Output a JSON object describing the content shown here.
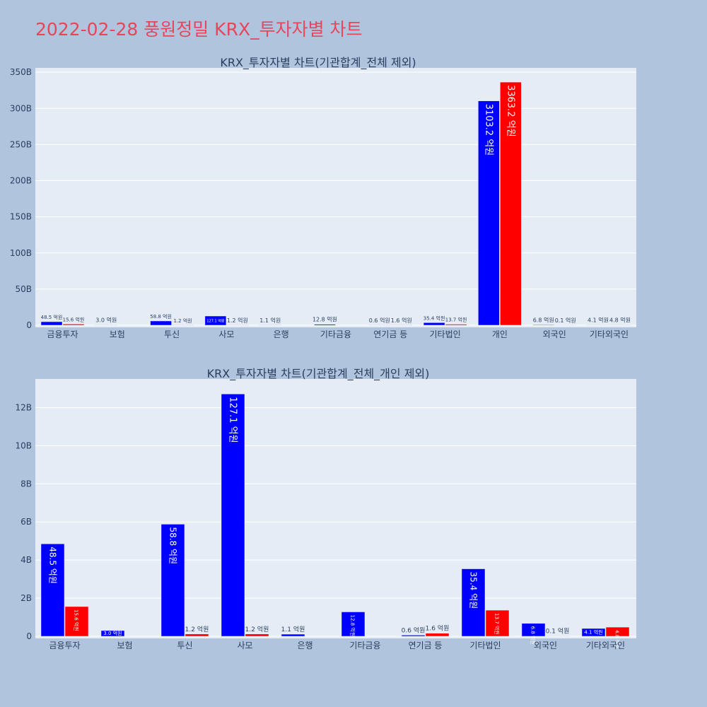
{
  "page_title": "2022-02-28 풍원정밀 KRX_투자자별 차트",
  "colors": {
    "background": "#b0c4de",
    "plot_bg": "#e5ecf6",
    "buy": "#0000ff",
    "sell": "#ff0000",
    "title": "#e8455b",
    "text": "#2a3f5f",
    "grid": "#ffffff"
  },
  "chart_data": [
    {
      "type": "bar",
      "title": "KRX_투자자별 차트(기관합계_전체 제외)",
      "categories": [
        "금융투자",
        "보험",
        "투신",
        "사모",
        "은행",
        "기타금융",
        "연기금 등",
        "기타법인",
        "개인",
        "외국인",
        "기타외국인"
      ],
      "ylim": [
        0,
        356
      ],
      "yticks": [
        0,
        50,
        100,
        150,
        200,
        250,
        300,
        350
      ],
      "ytick_labels": [
        "0",
        "50B",
        "100B",
        "150B",
        "200B",
        "250B",
        "300B",
        "350B"
      ],
      "series": [
        {
          "color": "#0000ff",
          "values": [
            4.85,
            0.3,
            5.88,
            12.71,
            0.11,
            1.28,
            0.06,
            3.54,
            310.32,
            0.68,
            0.41
          ],
          "labels": [
            "48.5 억원",
            "3.0 억원",
            "58.8 억원",
            "127.1 억원",
            "1.1 억원",
            "12.8 억원",
            "0.6 억원",
            "35.4 억원",
            "3103.2 억원",
            "6.8 억원",
            "4.1 억원"
          ]
        },
        {
          "color": "#ff0000",
          "values": [
            1.56,
            0,
            0.12,
            0.12,
            0,
            0,
            0.16,
            1.37,
            336.32,
            0.01,
            0.48
          ],
          "labels": [
            "15.6 억원",
            "",
            "1.2 억원",
            "1.2 억원",
            "",
            "",
            "1.6 억원",
            "13.7 억원",
            "3363.2 억원",
            "0.1 억원",
            "4.8 억원"
          ]
        }
      ],
      "grid": true
    },
    {
      "type": "bar",
      "title": "KRX_투자자별 차트(기관합계_전체_개인 제외)",
      "categories": [
        "금융투자",
        "보험",
        "투신",
        "사모",
        "은행",
        "기타금융",
        "연기금 등",
        "기타법인",
        "외국인",
        "기타외국인"
      ],
      "ylim": [
        0,
        13.5
      ],
      "yticks": [
        0,
        2,
        4,
        6,
        8,
        10,
        12
      ],
      "ytick_labels": [
        "0",
        "2B",
        "4B",
        "6B",
        "8B",
        "10B",
        "12B"
      ],
      "series": [
        {
          "color": "#0000ff",
          "values": [
            4.85,
            0.3,
            5.88,
            12.71,
            0.11,
            1.28,
            0.06,
            3.54,
            0.68,
            0.41
          ],
          "labels": [
            "48.5 억원",
            "3.0 억원",
            "58.8 억원",
            "127.1 억원",
            "1.1 억원",
            "12.8 억원",
            "0.6 억원",
            "35.4 억원",
            "6.8 억원",
            "4.1 억원"
          ]
        },
        {
          "color": "#ff0000",
          "values": [
            1.56,
            0,
            0.12,
            0.12,
            0,
            0,
            0.16,
            1.37,
            0.01,
            0.48
          ],
          "labels": [
            "15.6 억원",
            "",
            "1.2 억원",
            "1.2 억원",
            "",
            "",
            "1.6 억원",
            "13.7 억원",
            "0.1 억원",
            "4.8 억원"
          ]
        }
      ],
      "grid": true
    }
  ]
}
